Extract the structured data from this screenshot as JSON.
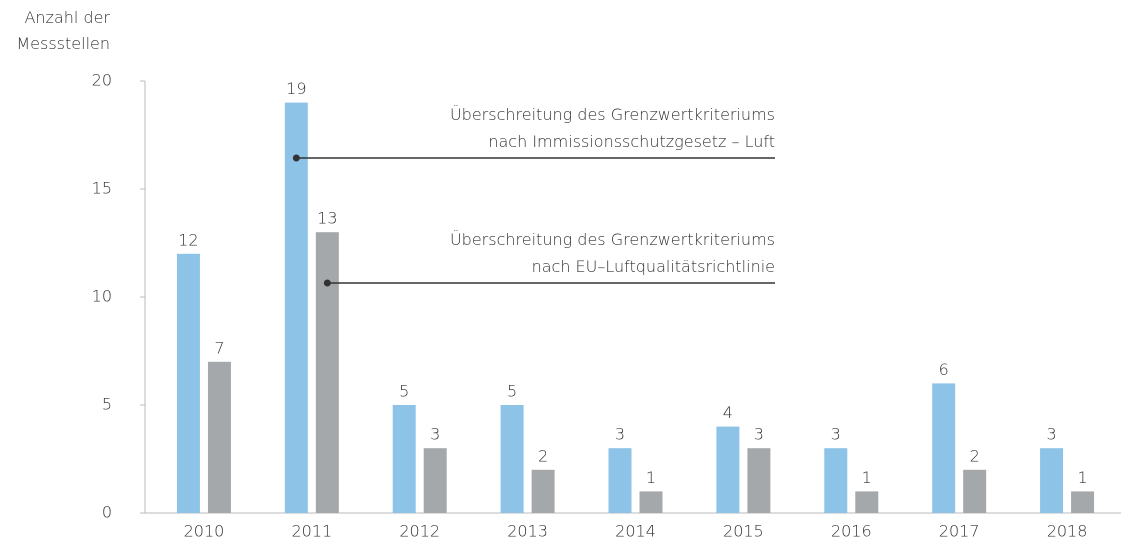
{
  "chart_data": {
    "type": "bar",
    "y_label": "Anzahl der\nMessstellen",
    "categories": [
      "2010",
      "2011",
      "2012",
      "2013",
      "2014",
      "2015",
      "2016",
      "2017",
      "2018"
    ],
    "series": [
      {
        "name": "Überschreitung des Grenzwertkriteriums\nnach Immissionsschutzgesetz – Luft",
        "color": "#8ec3e8",
        "values": [
          12,
          19,
          5,
          5,
          3,
          4,
          3,
          6,
          3
        ]
      },
      {
        "name": "Überschreitung des Grenzwertkriteriums\nnach EU–Luftqualitätsrichtlinie",
        "color": "#a5a8ab",
        "values": [
          7,
          13,
          3,
          2,
          1,
          3,
          1,
          2,
          1
        ]
      }
    ],
    "ylim": [
      0,
      20
    ],
    "yticks": [
      0,
      5,
      10,
      15,
      20
    ]
  }
}
